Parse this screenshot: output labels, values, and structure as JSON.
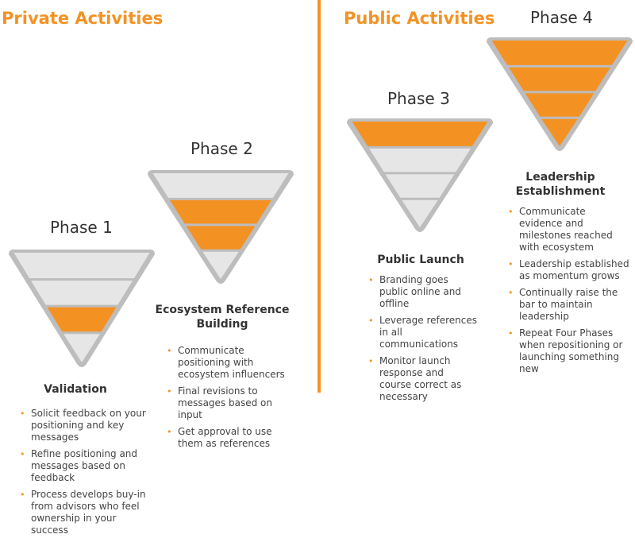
{
  "colors": {
    "accent": "#f39223",
    "inactive": "#e6e6e6",
    "outline": "#bdbdbd"
  },
  "private": {
    "title": "Private Activities"
  },
  "public": {
    "title": "Public Activities"
  },
  "phases": [
    {
      "label": "Phase 1",
      "highlighted_bands": [
        3
      ],
      "heading": "Validation",
      "bullets": [
        "Solicit feedback on your positioning and key messages",
        "Refine positioning and messages based on feedback",
        "Process develops buy-in from advisors who feel ownership in your success"
      ]
    },
    {
      "label": "Phase 2",
      "highlighted_bands": [
        2,
        3
      ],
      "heading": "Ecosystem Reference Building",
      "bullets": [
        "Communicate positioning with ecosystem influencers",
        "Final revisions to messages based on input",
        "Get approval to use them as references"
      ]
    },
    {
      "label": "Phase 3",
      "highlighted_bands": [
        1
      ],
      "heading": "Public Launch",
      "bullets": [
        "Branding goes public online and offline",
        "Leverage references in all communications",
        "Monitor launch response and course correct as necessary"
      ]
    },
    {
      "label": "Phase 4",
      "highlighted_bands": [
        1,
        2,
        3,
        4
      ],
      "heading": "Leadership Establishment",
      "bullets": [
        "Communicate evidence and milestones reached with ecosystem",
        "Leadership established as momentum grows",
        "Continually raise the bar to maintain leadership",
        "Repeat Four Phases when repositioning or launching something new"
      ]
    }
  ]
}
